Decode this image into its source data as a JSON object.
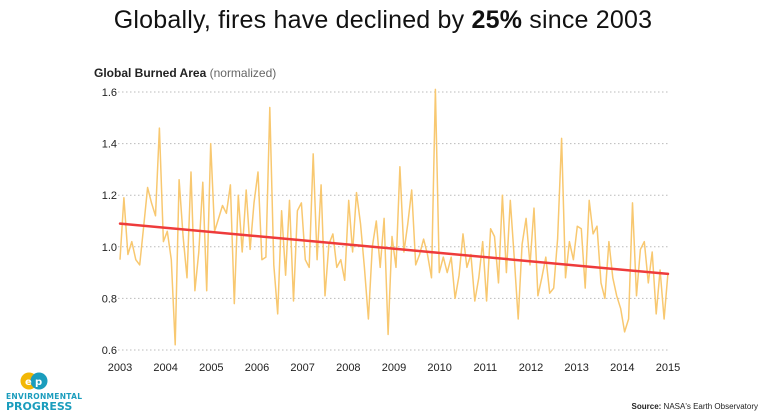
{
  "headline": {
    "prefix": "Globally, fires have declined by ",
    "emphasis": "25%",
    "suffix": " since 2003"
  },
  "chart_title": {
    "main": "Global Burned Area",
    "sub": "(normalized)"
  },
  "source": {
    "label": "Source:",
    "text": "NASA's Earth Observatory"
  },
  "logo": {
    "line1": "ENVIRONMENTAL",
    "line2": "PROGRESS",
    "icon": "ep-logo-icon"
  },
  "colors": {
    "series": "#f8c870",
    "trend": "#ee3b3b",
    "grid": "#bbbbbb",
    "logo_blue": "#1b9dbd",
    "logo_yellow": "#f2b705"
  },
  "chart_data": {
    "type": "line",
    "title": "Global Burned Area (normalized)",
    "xlabel": "",
    "ylabel": "",
    "xlim": [
      2003,
      2015
    ],
    "ylim": [
      0.6,
      1.6
    ],
    "x_ticks": [
      "2003",
      "2004",
      "2005",
      "2006",
      "2007",
      "2008",
      "2009",
      "2010",
      "2011",
      "2012",
      "2013",
      "2014",
      "2015"
    ],
    "y_ticks": [
      "0.6",
      "0.8",
      "1.0",
      "1.2",
      "1.4",
      "1.6"
    ],
    "grid": "horizontal dotted",
    "series": [
      {
        "name": "Global Burned Area",
        "x_start": 2003.0,
        "x_step": 0.0833,
        "values": [
          0.95,
          1.19,
          0.97,
          1.02,
          0.95,
          0.93,
          1.08,
          1.23,
          1.17,
          1.12,
          1.46,
          1.02,
          1.06,
          0.95,
          0.62,
          1.26,
          1.04,
          0.88,
          1.29,
          0.83,
          0.98,
          1.25,
          0.83,
          1.4,
          1.06,
          1.11,
          1.16,
          1.13,
          1.24,
          0.78,
          1.2,
          0.98,
          1.22,
          0.99,
          1.17,
          1.29,
          0.95,
          0.96,
          1.54,
          0.93,
          0.74,
          1.14,
          0.89,
          1.18,
          0.79,
          1.14,
          1.17,
          0.95,
          0.92,
          1.36,
          0.95,
          1.24,
          0.81,
          1.01,
          1.05,
          0.92,
          0.95,
          0.87,
          1.18,
          0.98,
          1.21,
          1.09,
          0.92,
          0.72,
          1.0,
          1.1,
          0.92,
          1.11,
          0.66,
          1.04,
          0.92,
          1.31,
          0.98,
          1.09,
          1.22,
          0.93,
          0.97,
          1.03,
          0.97,
          0.88,
          1.61,
          0.9,
          0.96,
          0.9,
          0.96,
          0.8,
          0.89,
          1.05,
          0.92,
          0.97,
          0.79,
          0.88,
          1.02,
          0.79,
          1.07,
          1.04,
          0.86,
          1.2,
          0.9,
          1.18,
          0.96,
          0.72,
          1.01,
          1.11,
          0.93,
          1.15,
          0.81,
          0.88,
          0.96,
          0.82,
          0.84,
          1.03,
          1.42,
          0.88,
          1.02,
          0.95,
          1.08,
          1.07,
          0.84,
          1.18,
          1.05,
          1.08,
          0.86,
          0.8,
          1.02,
          0.88,
          0.81,
          0.76,
          0.67,
          0.72,
          1.17,
          0.81,
          0.99,
          1.02,
          0.86,
          0.98,
          0.74,
          0.91,
          0.72,
          0.9
        ]
      },
      {
        "name": "Trend",
        "x": [
          2003,
          2015
        ],
        "values": [
          1.09,
          0.895
        ]
      }
    ]
  }
}
